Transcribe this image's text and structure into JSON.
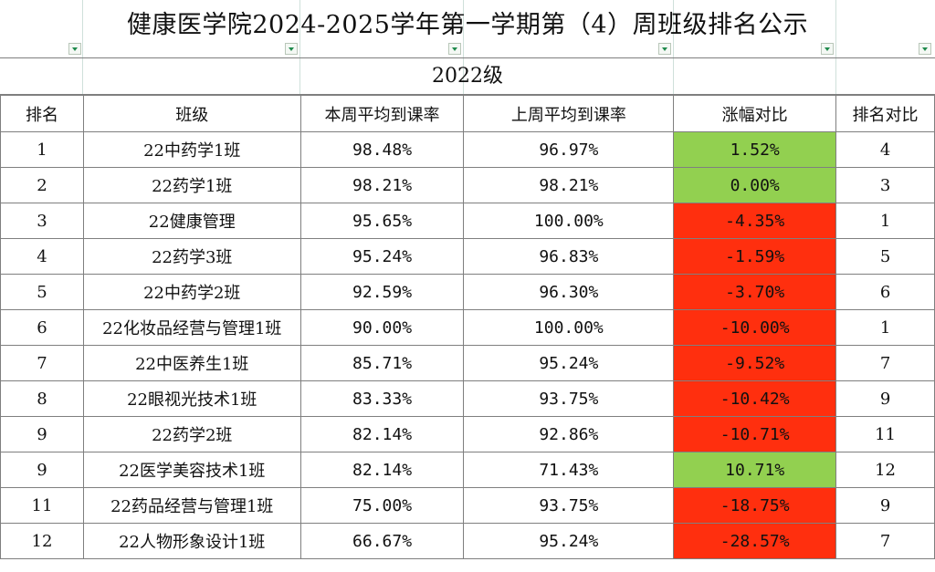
{
  "title": "健康医学院2024-2025学年第一学期第（4）周班级排名公示",
  "grade": "2022级",
  "colors": {
    "increase": "#92d050",
    "decrease": "#ff2f0e",
    "grid": "#7f7f7f"
  },
  "headers": [
    "排名",
    "班级",
    "本周平均到课率",
    "上周平均到课率",
    "涨幅对比",
    "排名对比"
  ],
  "rows": [
    {
      "rank": "1",
      "class": "22中药学1班",
      "this_week": "98.48%",
      "last_week": "96.97%",
      "change": "1.52%",
      "trend": "up",
      "rank_compare": "4"
    },
    {
      "rank": "2",
      "class": "22药学1班",
      "this_week": "98.21%",
      "last_week": "98.21%",
      "change": "0.00%",
      "trend": "up",
      "rank_compare": "3"
    },
    {
      "rank": "3",
      "class": "22健康管理",
      "this_week": "95.65%",
      "last_week": "100.00%",
      "change": "-4.35%",
      "trend": "down",
      "rank_compare": "1"
    },
    {
      "rank": "4",
      "class": "22药学3班",
      "this_week": "95.24%",
      "last_week": "96.83%",
      "change": "-1.59%",
      "trend": "down",
      "rank_compare": "5"
    },
    {
      "rank": "5",
      "class": "22中药学2班",
      "this_week": "92.59%",
      "last_week": "96.30%",
      "change": "-3.70%",
      "trend": "down",
      "rank_compare": "6"
    },
    {
      "rank": "6",
      "class": "22化妆品经营与管理1班",
      "this_week": "90.00%",
      "last_week": "100.00%",
      "change": "-10.00%",
      "trend": "down",
      "rank_compare": "1"
    },
    {
      "rank": "7",
      "class": "22中医养生1班",
      "this_week": "85.71%",
      "last_week": "95.24%",
      "change": "-9.52%",
      "trend": "down",
      "rank_compare": "7"
    },
    {
      "rank": "8",
      "class": "22眼视光技术1班",
      "this_week": "83.33%",
      "last_week": "93.75%",
      "change": "-10.42%",
      "trend": "down",
      "rank_compare": "9"
    },
    {
      "rank": "9",
      "class": "22药学2班",
      "this_week": "82.14%",
      "last_week": "92.86%",
      "change": "-10.71%",
      "trend": "down",
      "rank_compare": "11"
    },
    {
      "rank": "9",
      "class": "22医学美容技术1班",
      "this_week": "82.14%",
      "last_week": "71.43%",
      "change": "10.71%",
      "trend": "up",
      "rank_compare": "12"
    },
    {
      "rank": "11",
      "class": "22药品经营与管理1班",
      "this_week": "75.00%",
      "last_week": "93.75%",
      "change": "-18.75%",
      "trend": "down",
      "rank_compare": "9"
    },
    {
      "rank": "12",
      "class": "22人物形象设计1班",
      "this_week": "66.67%",
      "last_week": "95.24%",
      "change": "-28.57%",
      "trend": "down",
      "rank_compare": "7"
    }
  ]
}
